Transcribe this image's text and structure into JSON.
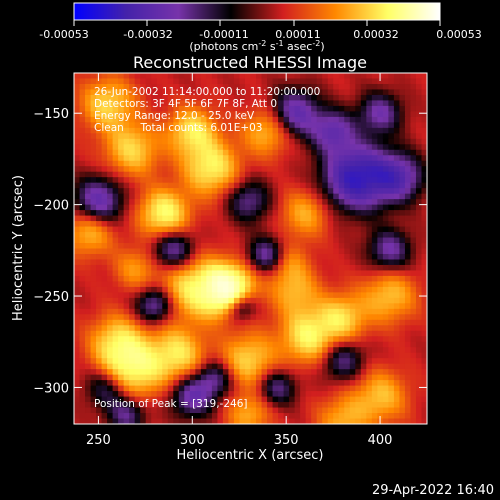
{
  "colorbar": {
    "stops": [
      "#0000ff",
      "#4422aa",
      "#7733aa",
      "#000000",
      "#d21f1f",
      "#ff8800",
      "#ffff66",
      "#ffffff"
    ],
    "ticks": [
      "-0.00053",
      "-0.00032",
      "-0.00011",
      "0.00011",
      "0.00032",
      "0.00053"
    ],
    "units_main": "(photons cm",
    "units_sup1": "-2",
    "units_mid1": " s",
    "units_sup2": "-1",
    "units_mid2": " asec",
    "units_sup3": "-2",
    "units_end": ")"
  },
  "footer_timestamp": "29-Apr-2022 16:40",
  "chart_data": {
    "type": "heatmap",
    "title": "Reconstructed RHESSI Image",
    "xlabel": "Heliocentric X (arcsec)",
    "ylabel": "Heliocentric Y (arcsec)",
    "xlim": [
      237,
      425
    ],
    "ylim": [
      -320,
      -128
    ],
    "xticks": [
      250,
      300,
      350,
      400
    ],
    "yticks": [
      -150,
      -200,
      -250,
      -300
    ],
    "annotations": [
      "26-Jun-2002 11:14:00.000 to 11:20:00.000",
      "Detectors: 3F 4F 5F 6F 7F 8F, Att 0",
      "Energy Range: 12.0 - 25.0 keV",
      "Clean     Total counts: 6.01E+03"
    ],
    "peak_label": "Position of Peak = [319,-246]",
    "peak": [
      319,
      -246
    ],
    "blobs": [
      {
        "x": 319,
        "y": -247,
        "v": 1.0,
        "s": 9
      },
      {
        "x": 300,
        "y": -245,
        "v": 0.45,
        "s": 12
      },
      {
        "x": 268,
        "y": -290,
        "v": 0.55,
        "s": 11
      },
      {
        "x": 260,
        "y": -275,
        "v": 0.4,
        "s": 10
      },
      {
        "x": 292,
        "y": -282,
        "v": 0.45,
        "s": 10
      },
      {
        "x": 330,
        "y": -285,
        "v": 0.4,
        "s": 10
      },
      {
        "x": 362,
        "y": -272,
        "v": 0.5,
        "s": 10
      },
      {
        "x": 380,
        "y": -262,
        "v": 0.4,
        "s": 9
      },
      {
        "x": 405,
        "y": -250,
        "v": 0.35,
        "s": 10
      },
      {
        "x": 355,
        "y": -248,
        "v": 0.3,
        "s": 9
      },
      {
        "x": 285,
        "y": -205,
        "v": 0.55,
        "s": 9
      },
      {
        "x": 310,
        "y": -180,
        "v": 0.5,
        "s": 10
      },
      {
        "x": 300,
        "y": -160,
        "v": 0.45,
        "s": 9
      },
      {
        "x": 268,
        "y": -170,
        "v": 0.4,
        "s": 10
      },
      {
        "x": 340,
        "y": -160,
        "v": 0.35,
        "s": 9
      },
      {
        "x": 360,
        "y": -205,
        "v": 0.3,
        "s": 9
      },
      {
        "x": 245,
        "y": -215,
        "v": 0.35,
        "s": 9
      },
      {
        "x": 255,
        "y": -145,
        "v": 0.4,
        "s": 10
      },
      {
        "x": 400,
        "y": -305,
        "v": 0.35,
        "s": 10
      },
      {
        "x": 380,
        "y": -318,
        "v": 0.3,
        "s": 9
      },
      {
        "x": 330,
        "y": -315,
        "v": 0.3,
        "s": 8
      },
      {
        "x": 350,
        "y": -232,
        "v": 0.25,
        "s": 8
      },
      {
        "x": 270,
        "y": -235,
        "v": 0.25,
        "s": 8
      },
      {
        "x": 388,
        "y": -185,
        "v": -0.8,
        "s": 12
      },
      {
        "x": 355,
        "y": -150,
        "v": -0.5,
        "s": 9
      },
      {
        "x": 375,
        "y": -160,
        "v": -0.45,
        "s": 8
      },
      {
        "x": 410,
        "y": -185,
        "v": -0.5,
        "s": 9
      },
      {
        "x": 290,
        "y": -225,
        "v": -0.45,
        "s": 8
      },
      {
        "x": 250,
        "y": -198,
        "v": -0.5,
        "s": 9
      },
      {
        "x": 340,
        "y": -228,
        "v": -0.45,
        "s": 7
      },
      {
        "x": 325,
        "y": -255,
        "v": -0.55,
        "s": 6
      },
      {
        "x": 405,
        "y": -225,
        "v": -0.4,
        "s": 8
      },
      {
        "x": 280,
        "y": -255,
        "v": -0.45,
        "s": 7
      },
      {
        "x": 255,
        "y": -300,
        "v": -0.35,
        "s": 8
      },
      {
        "x": 300,
        "y": -305,
        "v": -0.45,
        "s": 8
      },
      {
        "x": 345,
        "y": -300,
        "v": -0.35,
        "s": 7
      },
      {
        "x": 312,
        "y": -295,
        "v": -0.35,
        "s": 7
      },
      {
        "x": 380,
        "y": -285,
        "v": -0.35,
        "s": 8
      },
      {
        "x": 330,
        "y": -198,
        "v": -0.35,
        "s": 8
      },
      {
        "x": 400,
        "y": -150,
        "v": -0.4,
        "s": 8
      },
      {
        "x": 265,
        "y": -315,
        "v": -0.35,
        "s": 7
      }
    ]
  }
}
